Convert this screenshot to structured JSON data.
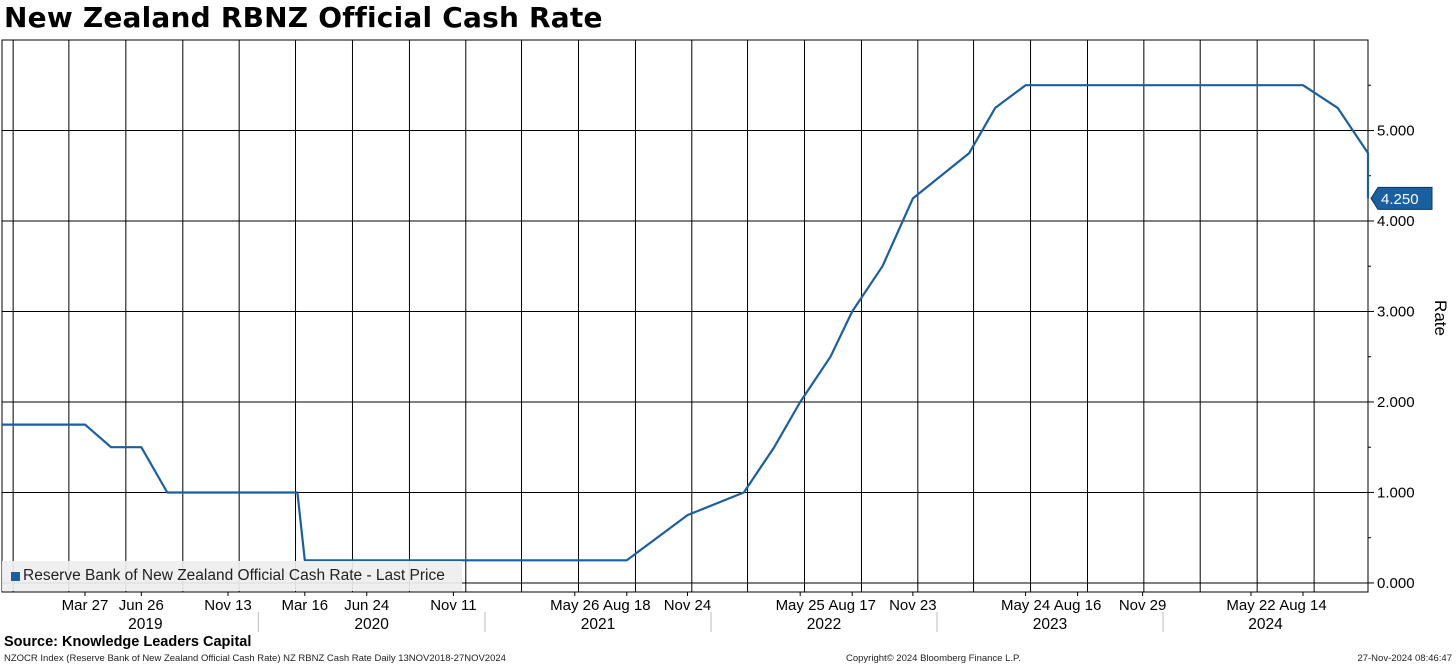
{
  "title": "New Zealand RBNZ Official Cash Rate",
  "legend": {
    "label": "Reserve Bank of New Zealand Official Cash Rate - Last Price",
    "color": "#1a5fa0"
  },
  "last_value": {
    "label": "4.250",
    "value": 4.25
  },
  "source": "Source: Knowledge Leaders Capital",
  "footer": {
    "left": "NZOCR Index (Reserve Bank of New Zealand Official Cash Rate) NZ RBNZ Cash Rate  Daily 13NOV2018-27NOV2024",
    "mid": "Copyright© 2024 Bloomberg Finance L.P.",
    "right": "27-Nov-2024 08:46:47"
  },
  "chart_data": {
    "type": "line",
    "title": "New Zealand RBNZ Official Cash Rate",
    "ylabel": "Rate",
    "ylim": [
      -0.1,
      6.0
    ],
    "yaxis_position": "right",
    "yticks": [
      {
        "value": 0,
        "label": "0.000"
      },
      {
        "value": 1,
        "label": "1.000"
      },
      {
        "value": 2,
        "label": "2.000"
      },
      {
        "value": 3,
        "label": "3.000"
      },
      {
        "value": 4,
        "label": "4.000"
      },
      {
        "value": 5,
        "label": "5.000"
      }
    ],
    "xlim": [
      "2018-11-13",
      "2024-11-27"
    ],
    "grid": true,
    "legend_position": "bottom-left",
    "xtick_labels": [
      {
        "date": "2019-03-27",
        "label": "Mar 27"
      },
      {
        "date": "2019-06-26",
        "label": "Jun 26"
      },
      {
        "date": "2019-11-13",
        "label": "Nov 13"
      },
      {
        "date": "2020-03-16",
        "label": "Mar 16"
      },
      {
        "date": "2020-06-24",
        "label": "Jun 24"
      },
      {
        "date": "2020-11-11",
        "label": "Nov 11"
      },
      {
        "date": "2021-05-26",
        "label": "May 26"
      },
      {
        "date": "2021-08-18",
        "label": "Aug 18"
      },
      {
        "date": "2021-11-24",
        "label": "Nov 24"
      },
      {
        "date": "2022-05-25",
        "label": "May 25"
      },
      {
        "date": "2022-08-17",
        "label": "Aug 17"
      },
      {
        "date": "2022-11-23",
        "label": "Nov 23"
      },
      {
        "date": "2023-05-24",
        "label": "May 24"
      },
      {
        "date": "2023-08-16",
        "label": "Aug 16"
      },
      {
        "date": "2023-11-29",
        "label": "Nov 29"
      },
      {
        "date": "2024-05-22",
        "label": "May 22"
      },
      {
        "date": "2024-08-14",
        "label": "Aug 14"
      }
    ],
    "year_labels": [
      {
        "label": "2019",
        "start": "2019-01-01",
        "end": "2020-01-01"
      },
      {
        "label": "2020",
        "start": "2020-01-01",
        "end": "2021-01-01"
      },
      {
        "label": "2021",
        "start": "2021-01-01",
        "end": "2022-01-01"
      },
      {
        "label": "2022",
        "start": "2022-01-01",
        "end": "2023-01-01"
      },
      {
        "label": "2023",
        "start": "2023-01-01",
        "end": "2024-01-01"
      },
      {
        "label": "2024",
        "start": "2024-01-01",
        "end": "2024-11-27"
      }
    ],
    "series": [
      {
        "name": "Reserve Bank of New Zealand Official Cash Rate - Last Price",
        "color": "#1a5fa0",
        "points": [
          [
            "2018-11-13",
            1.75
          ],
          [
            "2019-03-27",
            1.75
          ],
          [
            "2019-05-08",
            1.5
          ],
          [
            "2019-06-26",
            1.5
          ],
          [
            "2019-08-07",
            1.0
          ],
          [
            "2020-03-04",
            1.0
          ],
          [
            "2020-03-16",
            0.25
          ],
          [
            "2021-08-18",
            0.25
          ],
          [
            "2021-10-06",
            0.5
          ],
          [
            "2021-11-24",
            0.75
          ],
          [
            "2022-02-23",
            1.0
          ],
          [
            "2022-04-13",
            1.5
          ],
          [
            "2022-05-25",
            2.0
          ],
          [
            "2022-07-13",
            2.5
          ],
          [
            "2022-08-17",
            3.0
          ],
          [
            "2022-10-05",
            3.5
          ],
          [
            "2022-11-23",
            4.25
          ],
          [
            "2023-02-22",
            4.75
          ],
          [
            "2023-04-05",
            5.25
          ],
          [
            "2023-05-24",
            5.5
          ],
          [
            "2024-08-14",
            5.5
          ],
          [
            "2024-10-09",
            5.25
          ],
          [
            "2024-11-27",
            4.75
          ],
          [
            "2024-11-27",
            4.25
          ]
        ]
      }
    ]
  }
}
